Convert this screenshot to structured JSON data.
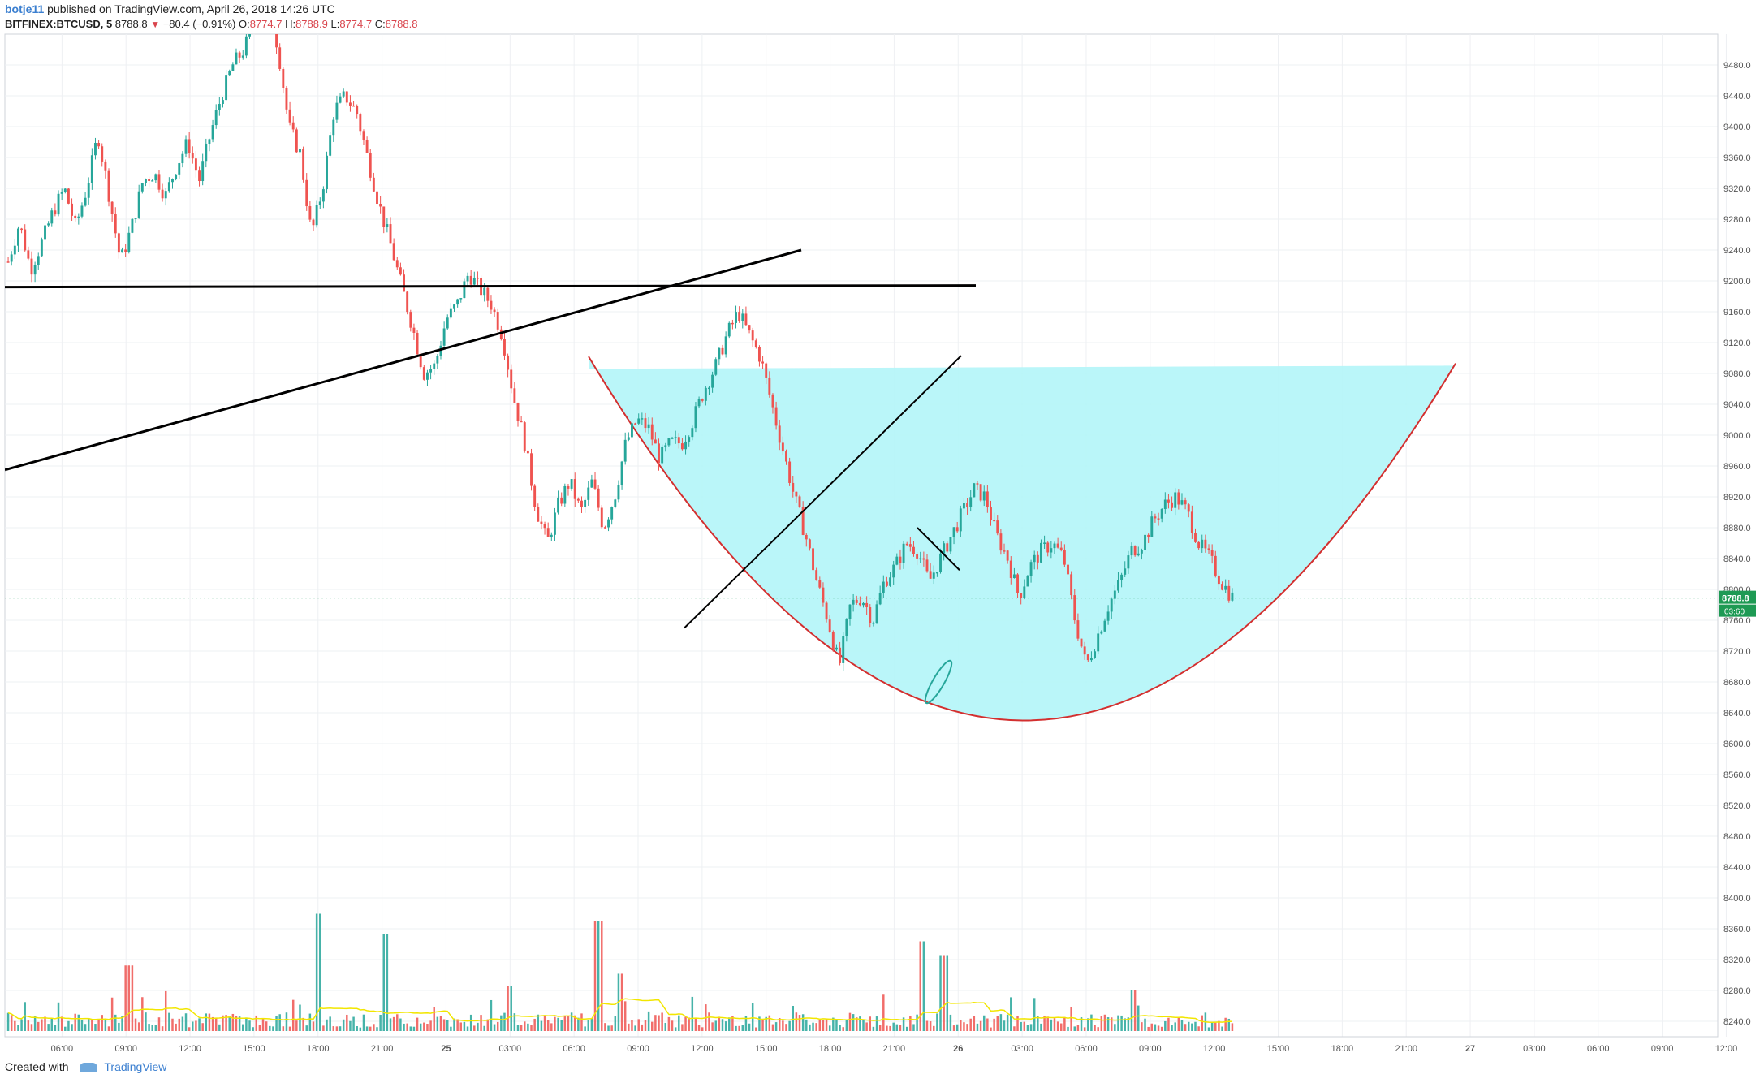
{
  "header": {
    "author": "botje11",
    "published_text": "published on TradingView.com, April 26, 2018 14:26 UTC",
    "symbol": "BITFINEX:BTCUSD, 5",
    "last_price": "8788.8",
    "change_arrow": "▼",
    "change": "−80.4 (−0.91%)",
    "open_label": "O:",
    "open": "8774.7",
    "high_label": "H:",
    "high": "8788.9",
    "low_label": "L:",
    "low": "8774.7",
    "close_label": "C:",
    "close": "8788.8"
  },
  "footer": {
    "created_with": "Created with",
    "brand": "TradingView"
  },
  "colors": {
    "up": "#26a69a",
    "down": "#ef5350",
    "cup_fill": "#b2f5f8",
    "cup_line": "#d32f2f",
    "trendline": "#000000",
    "volume_ma": "#f2e600",
    "last_price": "#1e9a54"
  },
  "chart_data": {
    "type": "candlestick",
    "title": "",
    "symbol": "BITFINEX:BTCUSD",
    "interval": "5",
    "y_axis_ticks": [
      "9480.0",
      "9440.0",
      "9400.0",
      "9360.0",
      "9320.0",
      "9280.0",
      "9240.0",
      "9200.0",
      "9160.0",
      "9120.0",
      "9080.0",
      "9040.0",
      "9000.0",
      "8960.0",
      "8920.0",
      "8880.0",
      "8840.0",
      "8800.0",
      "8760.0",
      "8720.0",
      "8680.0",
      "8640.0",
      "8600.0",
      "8560.0",
      "8520.0",
      "8480.0",
      "8440.0",
      "8400.0",
      "8360.0",
      "8320.0",
      "8280.0",
      "8240.0"
    ],
    "x_axis_ticks": [
      "06:00",
      "09:00",
      "12:00",
      "15:00",
      "18:00",
      "21:00",
      "25",
      "03:00",
      "06:00",
      "09:00",
      "12:00",
      "15:00",
      "18:00",
      "21:00",
      "26",
      "03:00",
      "06:00",
      "09:00",
      "12:00",
      "15:00",
      "18:00",
      "21:00",
      "27",
      "03:00",
      "06:00",
      "09:00",
      "12:00"
    ],
    "ylim": [
      8230,
      9510
    ],
    "last_price_label": "8788.8",
    "countdown_label": "03:60",
    "grid": true,
    "price_path_anchors": [
      9225,
      9275,
      9215,
      9250,
      9290,
      9320,
      9270,
      9320,
      9390,
      9310,
      9225,
      9270,
      9330,
      9340,
      9310,
      9350,
      9380,
      9330,
      9390,
      9440,
      9480,
      9500,
      9540,
      9560,
      9505,
      9400,
      9365,
      9260,
      9320,
      9420,
      9440,
      9420,
      9360,
      9300,
      9250,
      9195,
      9140,
      9080,
      9090,
      9150,
      9170,
      9210,
      9190,
      9170,
      9130,
      9050,
      8990,
      8905,
      8860,
      8910,
      8940,
      8900,
      8940,
      8880,
      8920,
      8990,
      9020,
      9010,
      8970,
      8990,
      8990,
      9020,
      9060,
      9090,
      9130,
      9160,
      9130,
      9100,
      9040,
      8980,
      8920,
      8870,
      8810,
      8760,
      8700,
      8780,
      8790,
      8760,
      8810,
      8830,
      8860,
      8850,
      8810,
      8840,
      8870,
      8900,
      8930,
      8920,
      8870,
      8840,
      8790,
      8830,
      8850,
      8860,
      8840,
      8760,
      8700,
      8740,
      8780,
      8810,
      8850,
      8860,
      8890,
      8910,
      8920,
      8900,
      8860,
      8840,
      8810,
      8790
    ],
    "volume_peaks": [
      {
        "time_index": 11,
        "volume": 9.5
      },
      {
        "time_index": 28,
        "volume": 17
      },
      {
        "time_index": 34,
        "volume": 14
      },
      {
        "time_index": 45,
        "volume": 6.5
      },
      {
        "time_index": 53,
        "volume": 16
      },
      {
        "time_index": 55,
        "volume": 8.3
      },
      {
        "time_index": 82,
        "volume": 13
      },
      {
        "time_index": 84,
        "volume": 11
      },
      {
        "time_index": 101,
        "volume": 6
      }
    ],
    "annotations": [
      {
        "type": "horizontal-line",
        "price": 9192
      },
      {
        "type": "trend-line",
        "from_price": 8955,
        "to_price": 9240
      },
      {
        "type": "trend-line",
        "from_price": 8750,
        "to_price": 9103
      },
      {
        "type": "cup-pattern",
        "rim_price": 9086,
        "bottom_price": 8630
      },
      {
        "type": "ellipse-marker",
        "price": 8680
      }
    ]
  }
}
